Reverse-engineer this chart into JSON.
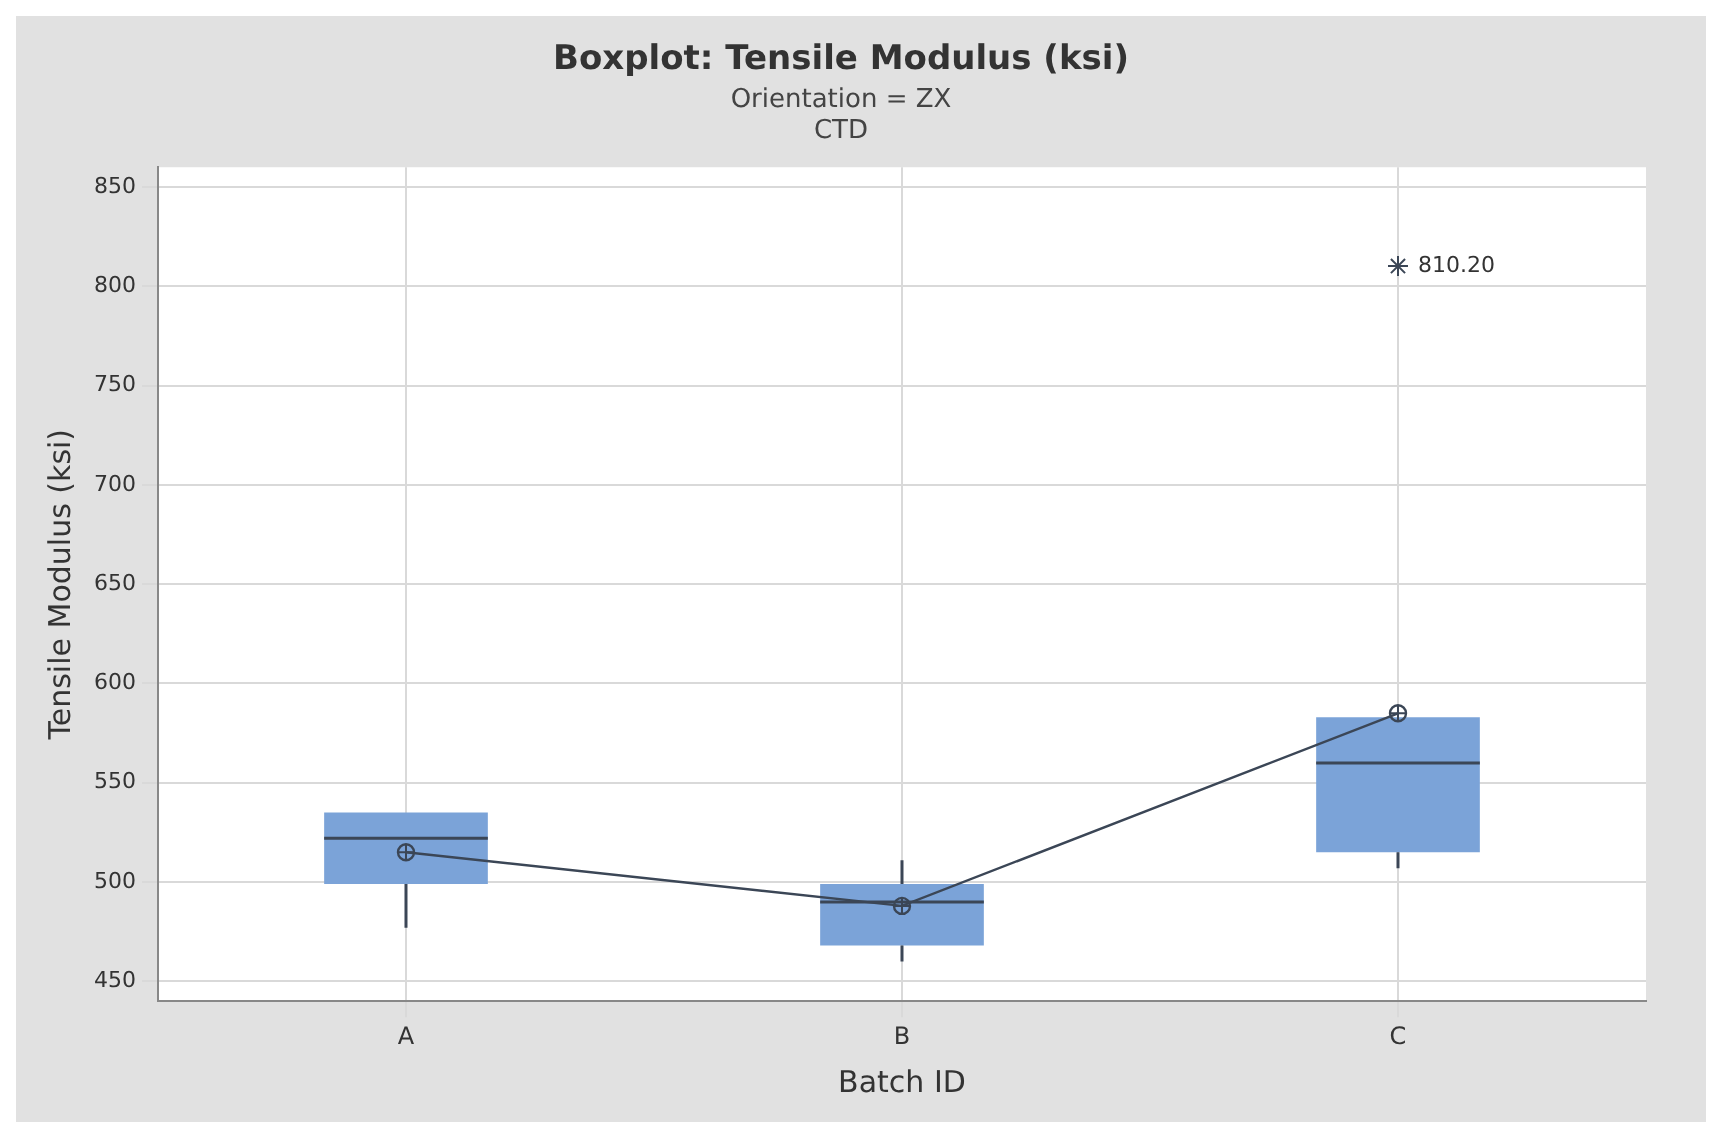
{
  "chart_data": {
    "type": "box",
    "title": "Boxplot: Tensile Modulus (ksi)",
    "subtitle": "Orientation = ZX\nCTD",
    "xlabel": "Batch ID",
    "ylabel": "Tensile Modulus (ksi)",
    "categories": [
      "A",
      "B",
      "C"
    ],
    "color": "#7ba3d8",
    "boxes": [
      {
        "low": 477,
        "q1": 499,
        "median": 522,
        "q3": 535,
        "high": 535
      },
      {
        "low": 460,
        "q1": 468,
        "median": 490,
        "q3": 499,
        "high": 511
      },
      {
        "low": 507,
        "q1": 515,
        "median": 560,
        "q3": 583,
        "high": 583,
        "outliers": [
          810.2
        ]
      }
    ],
    "series": [
      {
        "type": "line",
        "color": "#3b4656",
        "marker": "circle",
        "values": [
          515,
          488,
          585
        ]
      }
    ],
    "ylim": [
      440,
      860
    ],
    "yticks": [
      450,
      500,
      550,
      600,
      650,
      700,
      750,
      800,
      850
    ],
    "grid": true,
    "annotations": [
      "810.20"
    ]
  }
}
